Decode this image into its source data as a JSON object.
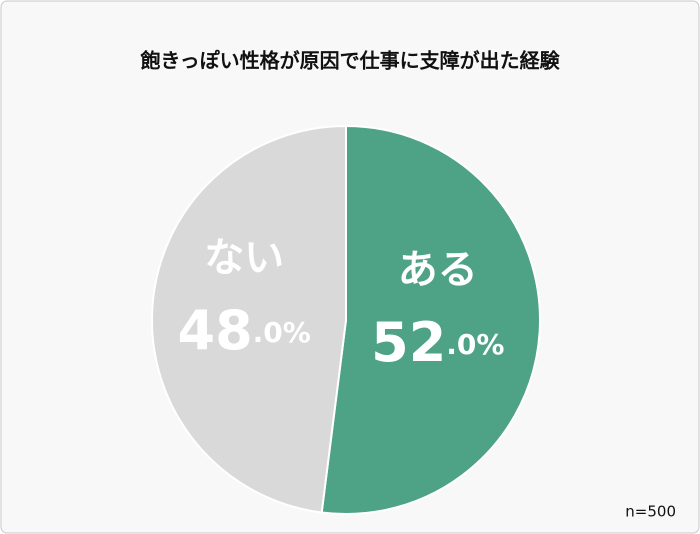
{
  "chart_data": {
    "type": "pie",
    "title": "飽きっぽい性格が原因で仕事に支障が出た経験",
    "categories": [
      "ある",
      "ない"
    ],
    "values": [
      52,
      48
    ],
    "value_labels": [
      "52.0%",
      "48.0%"
    ],
    "colors": [
      "#4ea386",
      "#d9d9d9"
    ],
    "note": "n=500"
  }
}
